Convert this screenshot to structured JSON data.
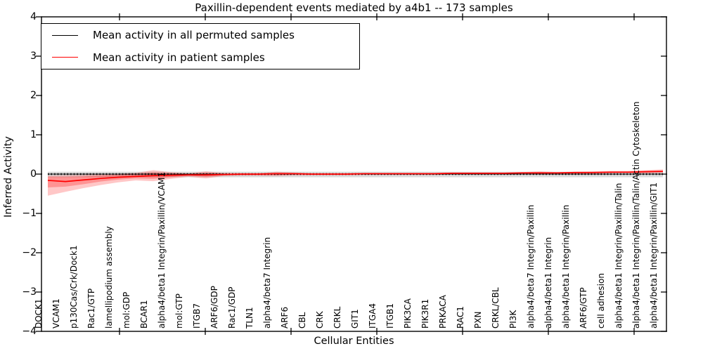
{
  "figure": {
    "title": "Paxillin-dependent events mediated by a4b1 -- 173 samples",
    "xlabel": "Cellular Entities",
    "ylabel": "Inferred Activity"
  },
  "legend": {
    "position": "upper left",
    "entries": [
      {
        "label": "Mean activity in all permuted samples",
        "color": "#000000"
      },
      {
        "label": "Mean activity in patient samples",
        "color": "#ff0000"
      }
    ]
  },
  "colors": {
    "permuted_line": "#000000",
    "permuted_band": "#cfcfcf",
    "patient_line": "#ff0000",
    "patient_band": "#ff0000",
    "axis": "#000000"
  },
  "chart_data": {
    "type": "line",
    "title": "Paxillin-dependent events mediated by a4b1 -- 173 samples",
    "xlabel": "Cellular Entities",
    "ylabel": "Inferred Activity",
    "ylim": [
      -4,
      4
    ],
    "yticks": [
      -4,
      -3,
      -2,
      -1,
      0,
      1,
      2,
      3,
      4
    ],
    "grid": false,
    "legend_position": "upper left",
    "categories": [
      "DOCK1",
      "VCAM1",
      "p130Cas/Crk/Dock1",
      "Rac1/GTP",
      "lamellipodium assembly",
      "mol:GDP",
      "BCAR1",
      "alpha4/beta1 Integrin/Paxillin/VCAM1",
      "mol:GTP",
      "ITGB7",
      "ARF6/GDP",
      "Rac1/GDP",
      "TLN1",
      "alpha4/beta7 Integrin",
      "ARF6",
      "CBL",
      "CRK",
      "CRKL",
      "GIT1",
      "ITGA4",
      "ITGB1",
      "PIK3CA",
      "PIK3R1",
      "PRKACA",
      "RAC1",
      "PXN",
      "CRKL/CBL",
      "PI3K",
      "alpha4/beta7 Integrin/Paxillin",
      "alpha4/beta1 Integrin",
      "alpha4/beta1 Integrin/Paxillin",
      "ARF6/GTP",
      "cell adhesion",
      "alpha4/beta1 Integrin/Paxillin/Talin",
      "alpha4/beta1 Integrin/Paxillin/Talin/Actin Cytoskeleton",
      "alpha4/beta1 Integrin/Paxillin/GIT1"
    ],
    "series": [
      {
        "name": "Mean activity in all permuted samples",
        "color": "#000000",
        "line_style": "solid-with-dots",
        "values": [
          0,
          0,
          0,
          0,
          0,
          0,
          0,
          0,
          0,
          0,
          0,
          0,
          0,
          0,
          0,
          0,
          0,
          0,
          0,
          0,
          0,
          0,
          0,
          0,
          0,
          0,
          0,
          0,
          0,
          0,
          0,
          0,
          0,
          0,
          0,
          0
        ],
        "band_upper": [
          0.06,
          0.06,
          0.06,
          0.06,
          0.06,
          0.06,
          0.06,
          0.06,
          0.06,
          0.06,
          0.06,
          0.06,
          0.06,
          0.06,
          0.06,
          0.06,
          0.06,
          0.06,
          0.06,
          0.06,
          0.06,
          0.06,
          0.06,
          0.06,
          0.06,
          0.06,
          0.06,
          0.06,
          0.06,
          0.06,
          0.06,
          0.06,
          0.06,
          0.06,
          0.06,
          0.06
        ],
        "band_lower": [
          -0.08,
          -0.08,
          -0.08,
          -0.08,
          -0.08,
          -0.08,
          -0.08,
          -0.08,
          -0.08,
          -0.08,
          -0.08,
          -0.08,
          -0.08,
          -0.08,
          -0.08,
          -0.08,
          -0.08,
          -0.08,
          -0.08,
          -0.08,
          -0.08,
          -0.08,
          -0.08,
          -0.08,
          -0.08,
          -0.08,
          -0.08,
          -0.08,
          -0.08,
          -0.08,
          -0.08,
          -0.08,
          -0.08,
          -0.08,
          -0.08,
          -0.08
        ]
      },
      {
        "name": "Mean activity in patient samples",
        "color": "#ff0000",
        "line_style": "solid",
        "values": [
          -0.16,
          -0.19,
          -0.15,
          -0.11,
          -0.08,
          -0.06,
          -0.04,
          -0.03,
          -0.02,
          -0.02,
          -0.01,
          0,
          0,
          0.01,
          0.01,
          0,
          0,
          0,
          0.01,
          0.01,
          0.01,
          0.01,
          0.01,
          0.02,
          0.02,
          0.02,
          0.02,
          0.03,
          0.03,
          0.03,
          0.04,
          0.04,
          0.05,
          0.05,
          0.06,
          0.07
        ],
        "band_upper": [
          -0.04,
          -0.03,
          -0.02,
          0,
          0.01,
          0.03,
          0.1,
          0.05,
          0.02,
          0.07,
          0.03,
          0.02,
          0.02,
          0.06,
          0.04,
          0.02,
          0.02,
          0.02,
          0.03,
          0.03,
          0.03,
          0.03,
          0.03,
          0.04,
          0.04,
          0.04,
          0.04,
          0.05,
          0.07,
          0.05,
          0.06,
          0.07,
          0.08,
          0.08,
          0.1,
          0.12
        ],
        "band_lower": [
          -0.55,
          -0.45,
          -0.36,
          -0.28,
          -0.21,
          -0.16,
          -0.18,
          -0.12,
          -0.07,
          -0.11,
          -0.05,
          -0.04,
          -0.04,
          -0.05,
          -0.03,
          -0.03,
          -0.03,
          -0.03,
          -0.02,
          -0.02,
          -0.02,
          -0.02,
          -0.02,
          -0.01,
          -0.01,
          -0.01,
          -0.01,
          0,
          -0.01,
          0,
          0.01,
          0.01,
          0.02,
          0.02,
          0.02,
          0.03
        ],
        "inner_band_upper": [
          -0.07,
          -0.07,
          -0.06,
          -0.04,
          -0.02,
          0,
          0.04,
          0.02,
          0,
          0.03,
          0.01,
          0.01,
          0.01,
          0.03,
          0.02,
          0.01,
          0.01,
          0.01,
          0.02,
          0.02,
          0.02,
          0.02,
          0.02,
          0.03,
          0.03,
          0.03,
          0.03,
          0.04,
          0.05,
          0.04,
          0.05,
          0.05,
          0.06,
          0.06,
          0.08,
          0.09
        ],
        "inner_band_lower": [
          -0.34,
          -0.32,
          -0.26,
          -0.19,
          -0.14,
          -0.11,
          -0.12,
          -0.08,
          -0.04,
          -0.07,
          -0.03,
          -0.02,
          -0.02,
          -0.02,
          -0.01,
          -0.01,
          -0.01,
          -0.01,
          0,
          0,
          0,
          0,
          0,
          0.01,
          0.01,
          0.01,
          0.01,
          0.02,
          0.01,
          0.02,
          0.02,
          0.03,
          0.03,
          0.04,
          0.04,
          0.05
        ]
      }
    ]
  }
}
